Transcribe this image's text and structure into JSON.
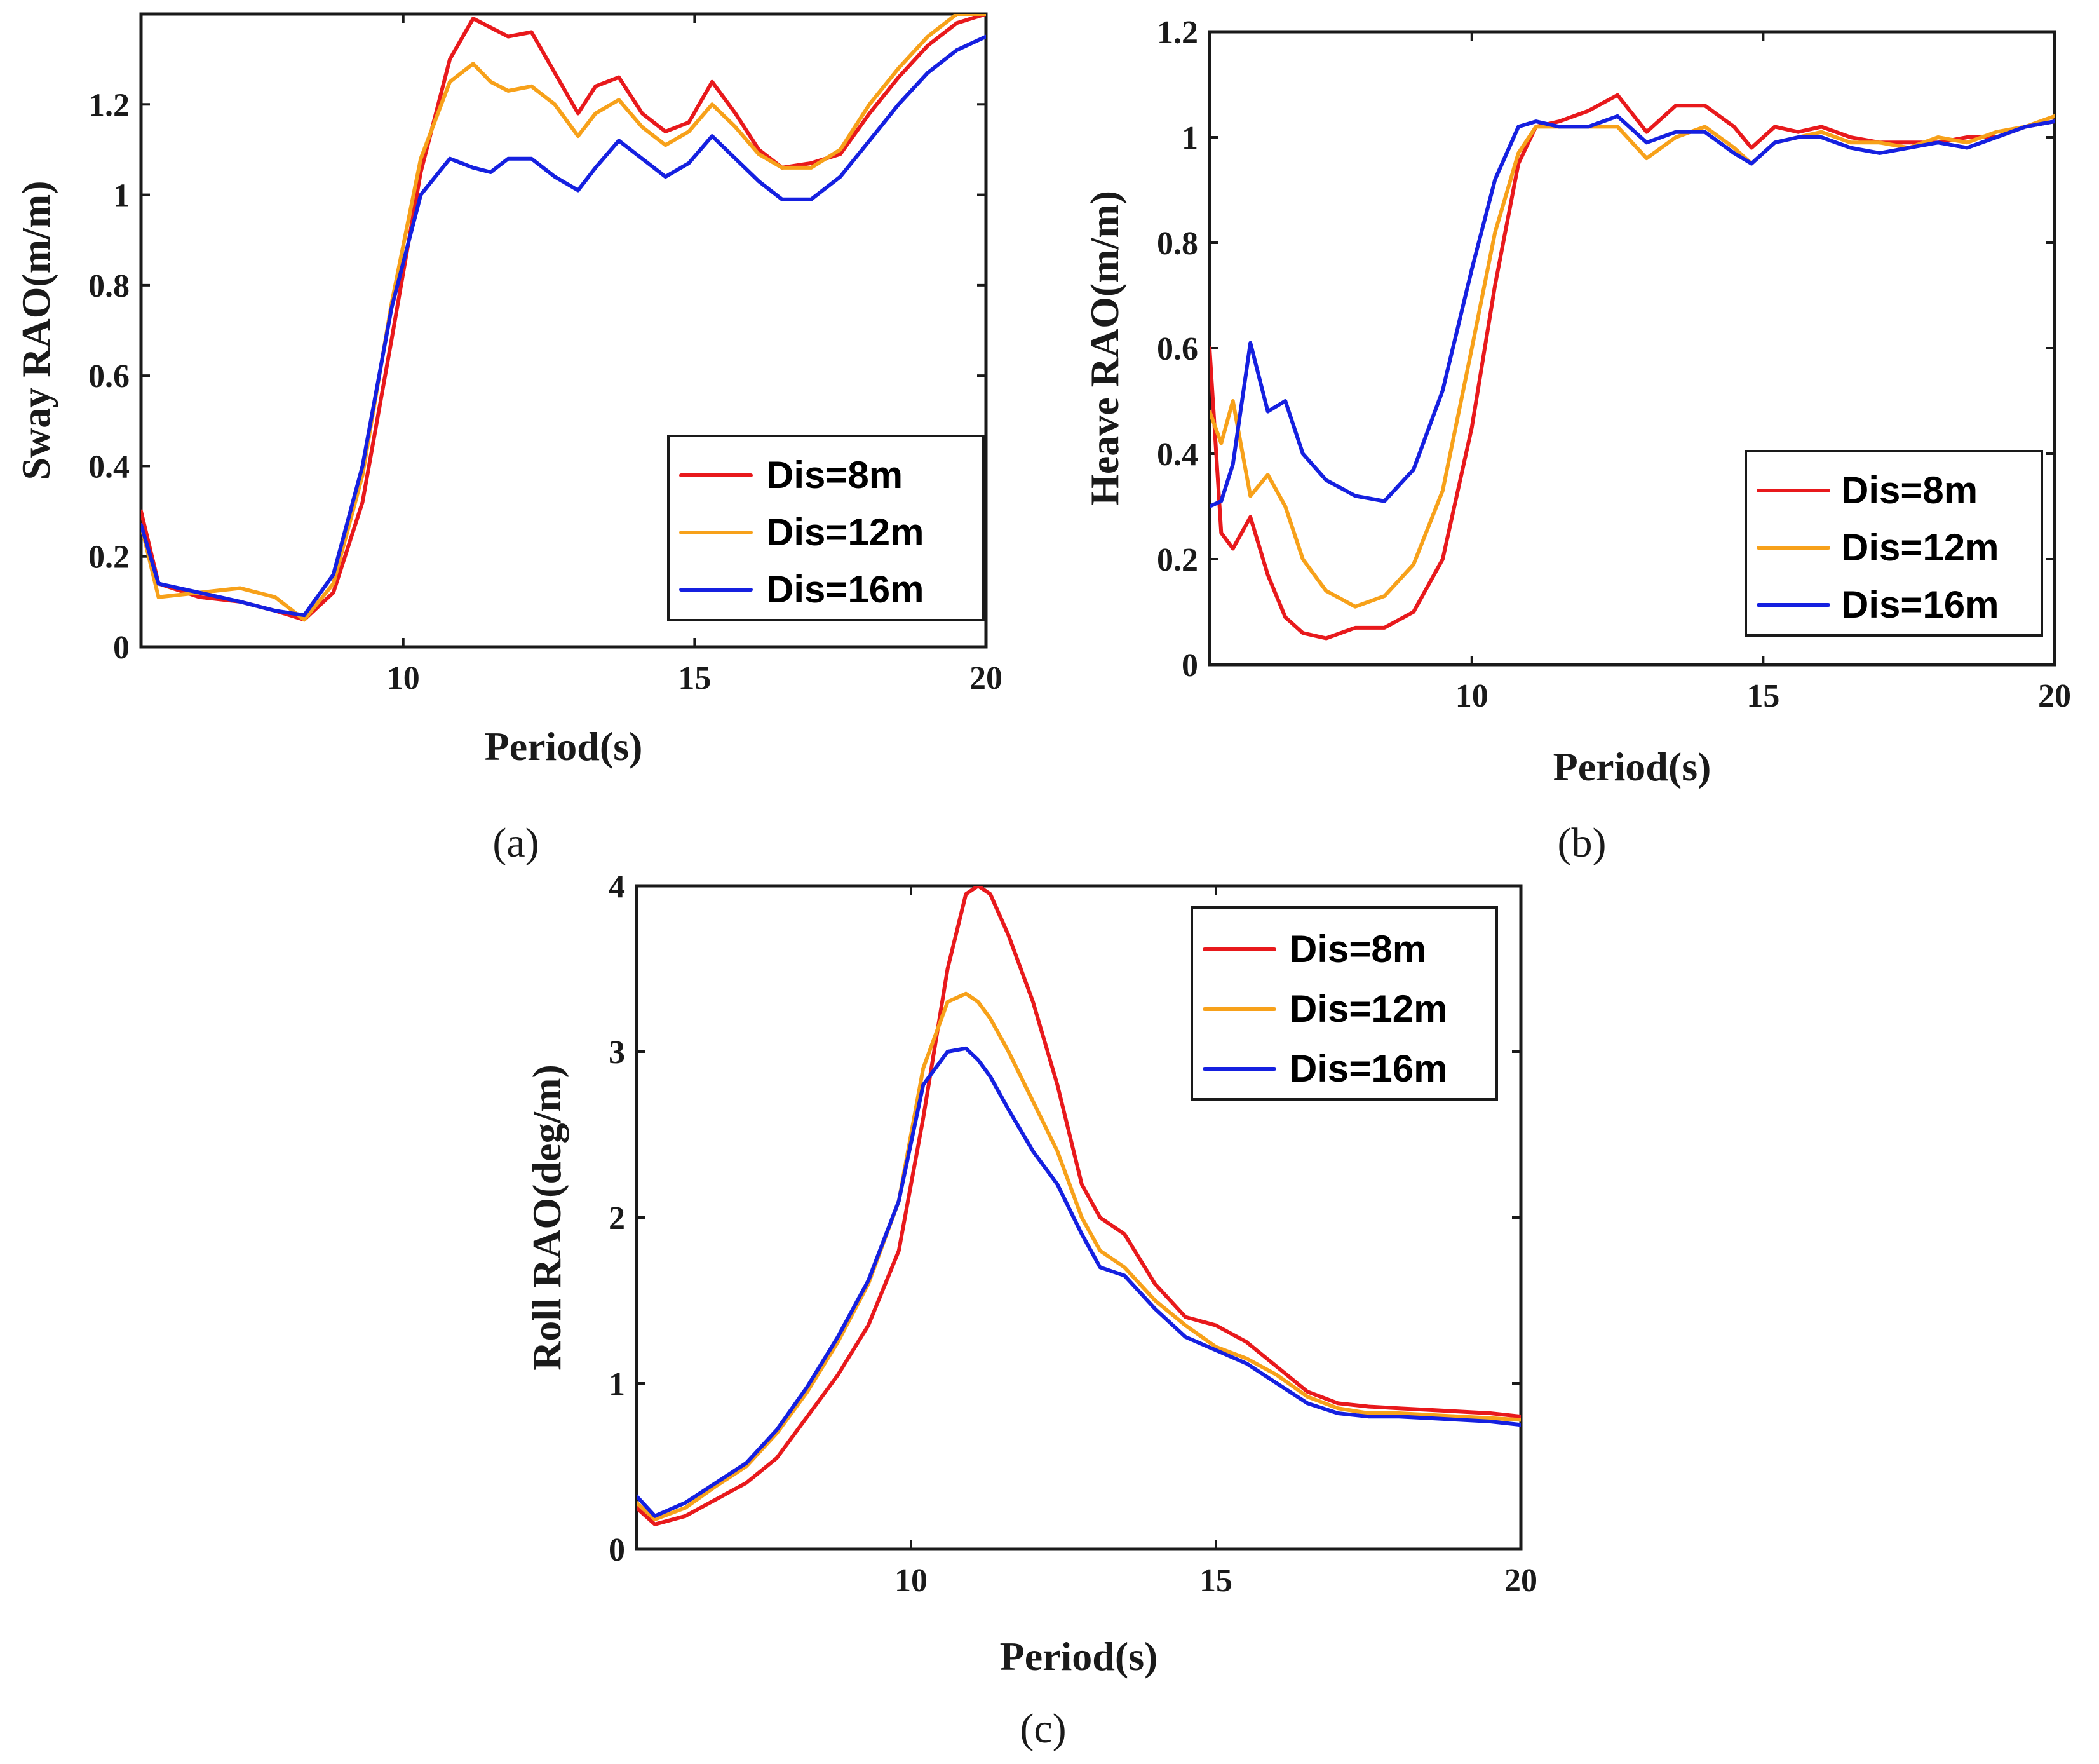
{
  "chart_data": [
    {
      "id": "a",
      "type": "line",
      "caption": "(a)",
      "xlabel": "Period(s)",
      "ylabel": "Sway RAO(m/m)",
      "xlim": [
        5.5,
        20
      ],
      "ylim": [
        0,
        1.4
      ],
      "xticks": [
        10,
        15,
        20
      ],
      "xtick_labels": [
        "10",
        "15",
        "20"
      ],
      "yticks": [
        0,
        0.2,
        0.4,
        0.6,
        0.8,
        1,
        1.2
      ],
      "ytick_labels": [
        "0",
        "0.2",
        "0.4",
        "0.6",
        "0.8",
        "1",
        "1.2"
      ],
      "legend_position": "bottom-right",
      "series": [
        {
          "name": "Dis=8m",
          "color": "#e8191c",
          "x": [
            5.5,
            5.8,
            6.5,
            7.2,
            7.8,
            8.3,
            8.8,
            9.3,
            9.8,
            10.3,
            10.8,
            11.2,
            11.5,
            11.8,
            12.2,
            12.6,
            13.0,
            13.3,
            13.7,
            14.1,
            14.5,
            14.9,
            15.3,
            15.7,
            16.1,
            16.5,
            17.0,
            17.5,
            18.0,
            18.5,
            19.0,
            19.5,
            20.0
          ],
          "y": [
            0.3,
            0.14,
            0.11,
            0.1,
            0.08,
            0.06,
            0.12,
            0.32,
            0.68,
            1.05,
            1.3,
            1.39,
            1.37,
            1.35,
            1.36,
            1.27,
            1.18,
            1.24,
            1.26,
            1.18,
            1.14,
            1.16,
            1.25,
            1.18,
            1.1,
            1.06,
            1.07,
            1.09,
            1.18,
            1.26,
            1.33,
            1.38,
            1.4
          ]
        },
        {
          "name": "Dis=12m",
          "color": "#f7a11a",
          "x": [
            5.5,
            5.8,
            6.5,
            7.2,
            7.8,
            8.3,
            8.8,
            9.3,
            9.8,
            10.3,
            10.8,
            11.2,
            11.5,
            11.8,
            12.2,
            12.6,
            13.0,
            13.3,
            13.7,
            14.1,
            14.5,
            14.9,
            15.3,
            15.7,
            16.1,
            16.5,
            17.0,
            17.5,
            18.0,
            18.5,
            19.0,
            19.5,
            20.0
          ],
          "y": [
            0.27,
            0.11,
            0.12,
            0.13,
            0.11,
            0.06,
            0.14,
            0.38,
            0.76,
            1.08,
            1.25,
            1.29,
            1.25,
            1.23,
            1.24,
            1.2,
            1.13,
            1.18,
            1.21,
            1.15,
            1.11,
            1.14,
            1.2,
            1.15,
            1.09,
            1.06,
            1.06,
            1.1,
            1.2,
            1.28,
            1.35,
            1.4,
            1.4
          ]
        },
        {
          "name": "Dis=16m",
          "color": "#1520e0",
          "x": [
            5.5,
            5.8,
            6.5,
            7.2,
            7.8,
            8.3,
            8.8,
            9.3,
            9.8,
            10.3,
            10.8,
            11.2,
            11.5,
            11.8,
            12.2,
            12.6,
            13.0,
            13.3,
            13.7,
            14.1,
            14.5,
            14.9,
            15.3,
            15.7,
            16.1,
            16.5,
            17.0,
            17.5,
            18.0,
            18.5,
            19.0,
            19.5,
            20.0
          ],
          "y": [
            0.27,
            0.14,
            0.12,
            0.1,
            0.08,
            0.07,
            0.16,
            0.4,
            0.75,
            1.0,
            1.08,
            1.06,
            1.05,
            1.08,
            1.08,
            1.04,
            1.01,
            1.06,
            1.12,
            1.08,
            1.04,
            1.07,
            1.13,
            1.08,
            1.03,
            0.99,
            0.99,
            1.04,
            1.12,
            1.2,
            1.27,
            1.32,
            1.35
          ]
        }
      ]
    },
    {
      "id": "b",
      "type": "line",
      "caption": "(b)",
      "xlabel": "Period(s)",
      "ylabel": "Heave RAO(m/m)",
      "xlim": [
        5.5,
        20
      ],
      "ylim": [
        0,
        1.2
      ],
      "xticks": [
        10,
        15,
        20
      ],
      "xtick_labels": [
        "10",
        "15",
        "20"
      ],
      "yticks": [
        0,
        0.2,
        0.4,
        0.6,
        0.8,
        1,
        1.2
      ],
      "ytick_labels": [
        "0",
        "0.2",
        "0.4",
        "0.6",
        "0.8",
        "1",
        "1.2"
      ],
      "legend_position": "bottom-right",
      "series": [
        {
          "name": "Dis=8m",
          "color": "#e8191c",
          "x": [
            5.5,
            5.7,
            5.9,
            6.2,
            6.5,
            6.8,
            7.1,
            7.5,
            8.0,
            8.5,
            9.0,
            9.5,
            10.0,
            10.4,
            10.8,
            11.1,
            11.5,
            12.0,
            12.5,
            13.0,
            13.5,
            14.0,
            14.5,
            14.8,
            15.2,
            15.6,
            16.0,
            16.5,
            17.0,
            17.5,
            18.0,
            18.5,
            19.0,
            19.5,
            20.0
          ],
          "y": [
            0.6,
            0.25,
            0.22,
            0.28,
            0.17,
            0.09,
            0.06,
            0.05,
            0.07,
            0.07,
            0.1,
            0.2,
            0.45,
            0.72,
            0.95,
            1.02,
            1.03,
            1.05,
            1.08,
            1.01,
            1.06,
            1.06,
            1.02,
            0.98,
            1.02,
            1.01,
            1.02,
            1.0,
            0.99,
            0.99,
            0.99,
            1.0,
            1.0,
            1.02,
            1.03
          ]
        },
        {
          "name": "Dis=12m",
          "color": "#f7a11a",
          "x": [
            5.5,
            5.7,
            5.9,
            6.2,
            6.5,
            6.8,
            7.1,
            7.5,
            8.0,
            8.5,
            9.0,
            9.5,
            10.0,
            10.4,
            10.8,
            11.1,
            11.5,
            12.0,
            12.5,
            13.0,
            13.5,
            14.0,
            14.5,
            14.8,
            15.2,
            15.6,
            16.0,
            16.5,
            17.0,
            17.5,
            18.0,
            18.5,
            19.0,
            19.5,
            20.0
          ],
          "y": [
            0.48,
            0.42,
            0.5,
            0.32,
            0.36,
            0.3,
            0.2,
            0.14,
            0.11,
            0.13,
            0.19,
            0.33,
            0.6,
            0.82,
            0.97,
            1.02,
            1.02,
            1.02,
            1.02,
            0.96,
            1.0,
            1.02,
            0.98,
            0.95,
            0.99,
            1.0,
            1.01,
            0.99,
            0.99,
            0.98,
            1.0,
            0.99,
            1.01,
            1.02,
            1.04
          ]
        },
        {
          "name": "Dis=16m",
          "color": "#1520e0",
          "x": [
            5.5,
            5.7,
            5.9,
            6.2,
            6.5,
            6.8,
            7.1,
            7.5,
            8.0,
            8.5,
            9.0,
            9.5,
            10.0,
            10.4,
            10.8,
            11.1,
            11.5,
            12.0,
            12.5,
            13.0,
            13.5,
            14.0,
            14.5,
            14.8,
            15.2,
            15.6,
            16.0,
            16.5,
            17.0,
            17.5,
            18.0,
            18.5,
            19.0,
            19.5,
            20.0
          ],
          "y": [
            0.3,
            0.31,
            0.38,
            0.61,
            0.48,
            0.5,
            0.4,
            0.35,
            0.32,
            0.31,
            0.37,
            0.52,
            0.75,
            0.92,
            1.02,
            1.03,
            1.02,
            1.02,
            1.04,
            0.99,
            1.01,
            1.01,
            0.97,
            0.95,
            0.99,
            1.0,
            1.0,
            0.98,
            0.97,
            0.98,
            0.99,
            0.98,
            1.0,
            1.02,
            1.03
          ]
        }
      ]
    },
    {
      "id": "c",
      "type": "line",
      "caption": "(c)",
      "xlabel": "Period(s)",
      "ylabel": "Roll RAO(deg/m)",
      "xlim": [
        5.5,
        20
      ],
      "ylim": [
        0,
        4
      ],
      "xticks": [
        10,
        15,
        20
      ],
      "xtick_labels": [
        "10",
        "15",
        "20"
      ],
      "yticks": [
        0,
        1,
        2,
        3,
        4
      ],
      "ytick_labels": [
        "0",
        "1",
        "2",
        "3",
        "4"
      ],
      "legend_position": "top-right",
      "series": [
        {
          "name": "Dis=8m",
          "color": "#e8191c",
          "x": [
            5.5,
            5.8,
            6.3,
            6.8,
            7.3,
            7.8,
            8.3,
            8.8,
            9.3,
            9.8,
            10.2,
            10.6,
            10.9,
            11.1,
            11.3,
            11.6,
            12.0,
            12.4,
            12.8,
            13.1,
            13.5,
            14.0,
            14.5,
            15.0,
            15.5,
            16.0,
            16.5,
            17.0,
            17.5,
            18.0,
            18.5,
            19.0,
            19.5,
            20.0
          ],
          "y": [
            0.25,
            0.15,
            0.2,
            0.3,
            0.4,
            0.55,
            0.8,
            1.05,
            1.35,
            1.8,
            2.6,
            3.5,
            3.95,
            4.0,
            3.95,
            3.7,
            3.3,
            2.8,
            2.2,
            2.0,
            1.9,
            1.6,
            1.4,
            1.35,
            1.25,
            1.1,
            0.95,
            0.88,
            0.86,
            0.85,
            0.84,
            0.83,
            0.82,
            0.8
          ]
        },
        {
          "name": "Dis=12m",
          "color": "#f7a11a",
          "x": [
            5.5,
            5.8,
            6.3,
            6.8,
            7.3,
            7.8,
            8.3,
            8.8,
            9.3,
            9.8,
            10.2,
            10.6,
            10.9,
            11.1,
            11.3,
            11.6,
            12.0,
            12.4,
            12.8,
            13.1,
            13.5,
            14.0,
            14.5,
            15.0,
            15.5,
            16.0,
            16.5,
            17.0,
            17.5,
            18.0,
            18.5,
            19.0,
            19.5,
            20.0
          ],
          "y": [
            0.28,
            0.18,
            0.25,
            0.38,
            0.5,
            0.7,
            0.95,
            1.25,
            1.6,
            2.1,
            2.9,
            3.3,
            3.35,
            3.3,
            3.2,
            3.0,
            2.7,
            2.4,
            2.0,
            1.8,
            1.7,
            1.5,
            1.35,
            1.22,
            1.15,
            1.05,
            0.92,
            0.85,
            0.82,
            0.82,
            0.81,
            0.8,
            0.79,
            0.78
          ]
        },
        {
          "name": "Dis=16m",
          "color": "#1520e0",
          "x": [
            5.5,
            5.8,
            6.3,
            6.8,
            7.3,
            7.8,
            8.3,
            8.8,
            9.3,
            9.8,
            10.2,
            10.6,
            10.9,
            11.1,
            11.3,
            11.6,
            12.0,
            12.4,
            12.8,
            13.1,
            13.5,
            14.0,
            14.5,
            15.0,
            15.5,
            16.0,
            16.5,
            17.0,
            17.5,
            18.0,
            18.5,
            19.0,
            19.5,
            20.0
          ],
          "y": [
            0.32,
            0.2,
            0.28,
            0.4,
            0.52,
            0.72,
            0.98,
            1.28,
            1.62,
            2.1,
            2.8,
            3.0,
            3.02,
            2.95,
            2.85,
            2.65,
            2.4,
            2.2,
            1.9,
            1.7,
            1.65,
            1.45,
            1.28,
            1.2,
            1.12,
            1.0,
            0.88,
            0.82,
            0.8,
            0.8,
            0.79,
            0.78,
            0.77,
            0.75
          ]
        }
      ]
    }
  ]
}
